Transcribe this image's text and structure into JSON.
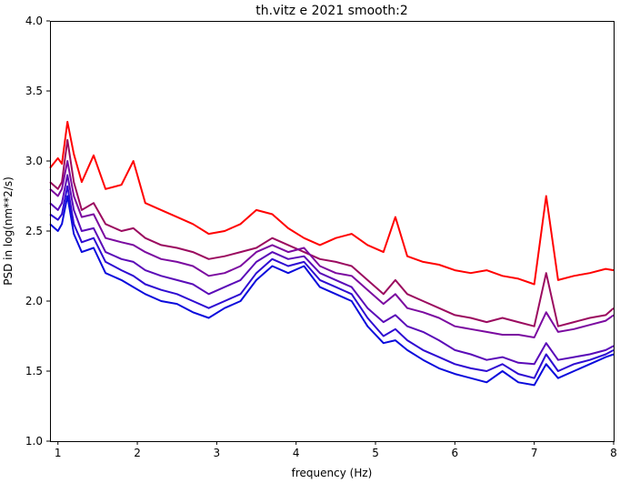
{
  "chart_data": {
    "type": "line",
    "title": "th.vitz e 2021 smooth:2",
    "xlabel": "frequency (Hz)",
    "ylabel": "PSD in log(nm**2/s)",
    "xlim": [
      0.9,
      8.0
    ],
    "ylim": [
      1.0,
      4.0
    ],
    "xticks": [
      1,
      2,
      3,
      4,
      5,
      6,
      7,
      8
    ],
    "xtick_labels": [
      "1",
      "2",
      "3",
      "4",
      "5",
      "6",
      "7",
      "8"
    ],
    "yticks": [
      1.0,
      1.5,
      2.0,
      2.5,
      3.0,
      3.5,
      4.0
    ],
    "ytick_labels": [
      "1.0",
      "1.5",
      "2.0",
      "2.5",
      "3.0",
      "3.5",
      "4.0"
    ],
    "grid": false,
    "legend": "none",
    "colors": [
      "#ff0000",
      "#9b0a5f",
      "#7b0aa0",
      "#5a0ab8",
      "#2d0ad2",
      "#0a0adc"
    ],
    "x": [
      0.9,
      1.0,
      1.05,
      1.12,
      1.2,
      1.3,
      1.45,
      1.6,
      1.8,
      1.95,
      2.1,
      2.3,
      2.5,
      2.7,
      2.9,
      3.1,
      3.3,
      3.5,
      3.7,
      3.9,
      4.1,
      4.3,
      4.5,
      4.7,
      4.9,
      5.1,
      5.25,
      5.4,
      5.6,
      5.8,
      6.0,
      6.2,
      6.4,
      6.6,
      6.8,
      7.0,
      7.15,
      7.3,
      7.5,
      7.7,
      7.9,
      8.0
    ],
    "series": [
      {
        "values": [
          2.95,
          3.02,
          2.98,
          3.28,
          3.05,
          2.85,
          3.04,
          2.8,
          2.83,
          3.0,
          2.7,
          2.65,
          2.6,
          2.55,
          2.48,
          2.5,
          2.55,
          2.65,
          2.62,
          2.52,
          2.45,
          2.4,
          2.45,
          2.48,
          2.4,
          2.35,
          2.6,
          2.32,
          2.28,
          2.26,
          2.22,
          2.2,
          2.22,
          2.18,
          2.16,
          2.12,
          2.75,
          2.15,
          2.18,
          2.2,
          2.23,
          2.22
        ]
      },
      {
        "values": [
          2.85,
          2.8,
          2.85,
          3.15,
          2.85,
          2.65,
          2.7,
          2.55,
          2.5,
          2.52,
          2.45,
          2.4,
          2.38,
          2.35,
          2.3,
          2.32,
          2.35,
          2.38,
          2.45,
          2.4,
          2.35,
          2.3,
          2.28,
          2.25,
          2.15,
          2.05,
          2.15,
          2.05,
          2.0,
          1.95,
          1.9,
          1.88,
          1.85,
          1.88,
          1.85,
          1.82,
          2.2,
          1.82,
          1.85,
          1.88,
          1.9,
          1.95
        ]
      },
      {
        "values": [
          2.8,
          2.75,
          2.8,
          3.0,
          2.75,
          2.6,
          2.62,
          2.45,
          2.42,
          2.4,
          2.35,
          2.3,
          2.28,
          2.25,
          2.18,
          2.2,
          2.25,
          2.35,
          2.4,
          2.35,
          2.38,
          2.25,
          2.2,
          2.18,
          2.08,
          1.98,
          2.05,
          1.95,
          1.92,
          1.88,
          1.82,
          1.8,
          1.78,
          1.76,
          1.76,
          1.74,
          1.92,
          1.78,
          1.8,
          1.83,
          1.86,
          1.9
        ]
      },
      {
        "values": [
          2.7,
          2.65,
          2.7,
          2.9,
          2.65,
          2.5,
          2.52,
          2.35,
          2.3,
          2.28,
          2.22,
          2.18,
          2.15,
          2.12,
          2.05,
          2.1,
          2.15,
          2.28,
          2.35,
          2.3,
          2.32,
          2.2,
          2.15,
          2.1,
          1.95,
          1.85,
          1.9,
          1.82,
          1.78,
          1.72,
          1.65,
          1.62,
          1.58,
          1.6,
          1.56,
          1.55,
          1.7,
          1.58,
          1.6,
          1.62,
          1.65,
          1.68
        ]
      },
      {
        "values": [
          2.62,
          2.58,
          2.62,
          2.82,
          2.55,
          2.42,
          2.45,
          2.28,
          2.22,
          2.18,
          2.12,
          2.08,
          2.05,
          2.0,
          1.95,
          2.0,
          2.05,
          2.2,
          2.3,
          2.25,
          2.28,
          2.15,
          2.1,
          2.05,
          1.88,
          1.75,
          1.8,
          1.72,
          1.65,
          1.6,
          1.55,
          1.52,
          1.5,
          1.55,
          1.48,
          1.45,
          1.62,
          1.5,
          1.55,
          1.58,
          1.62,
          1.65
        ]
      },
      {
        "values": [
          2.55,
          2.5,
          2.55,
          2.75,
          2.48,
          2.35,
          2.38,
          2.2,
          2.15,
          2.1,
          2.05,
          2.0,
          1.98,
          1.92,
          1.88,
          1.95,
          2.0,
          2.15,
          2.25,
          2.2,
          2.25,
          2.1,
          2.05,
          2.0,
          1.82,
          1.7,
          1.72,
          1.65,
          1.58,
          1.52,
          1.48,
          1.45,
          1.42,
          1.5,
          1.42,
          1.4,
          1.55,
          1.45,
          1.5,
          1.55,
          1.6,
          1.62
        ]
      }
    ]
  }
}
